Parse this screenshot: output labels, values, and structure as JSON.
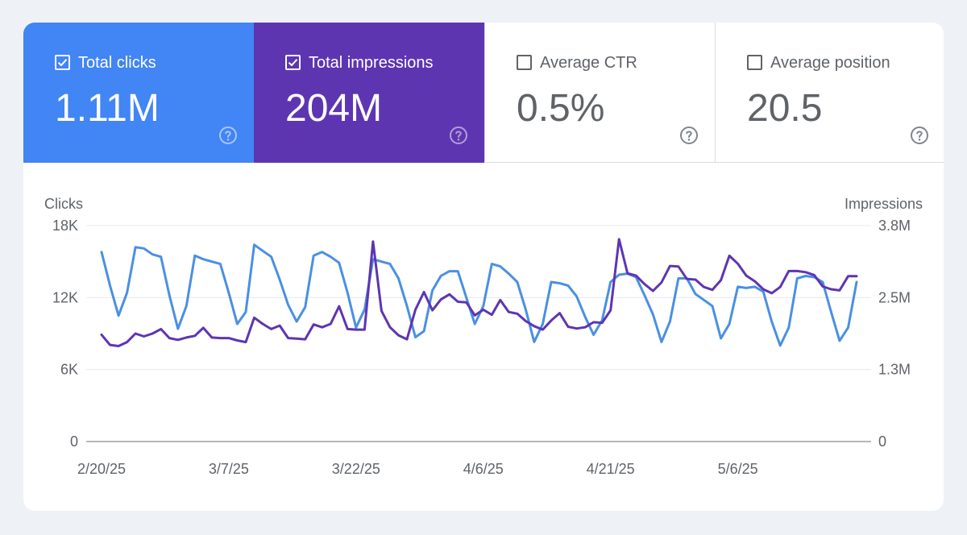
{
  "metrics": [
    {
      "label": "Total clicks",
      "value": "1.11M",
      "checked": true,
      "color": "#4285f4",
      "icon": "help-icon"
    },
    {
      "label": "Total impressions",
      "value": "204M",
      "checked": true,
      "color": "#5e35b1",
      "icon": "help-icon"
    },
    {
      "label": "Average CTR",
      "value": "0.5%",
      "checked": false,
      "icon": "help-icon"
    },
    {
      "label": "Average position",
      "value": "20.5",
      "checked": false,
      "icon": "help-icon"
    }
  ],
  "chart_data": {
    "type": "line",
    "ylabel_left": "Clicks",
    "ylabel_right": "Impressions",
    "ylim_left": [
      0,
      18000
    ],
    "ylim_right": [
      0,
      3800000
    ],
    "yticks_left": [
      "0",
      "6K",
      "12K",
      "18K"
    ],
    "yticks_right": [
      "0",
      "1.3M",
      "2.5M",
      "3.8M"
    ],
    "xticks": [
      "2/20/25",
      "3/7/25",
      "3/22/25",
      "4/6/25",
      "4/21/25",
      "5/6/25"
    ],
    "grid": true,
    "x_start": "2025-02-20",
    "series": [
      {
        "name": "Total clicks",
        "axis": "left",
        "color": "#4a90e2",
        "values": [
          15800,
          13000,
          10500,
          12400,
          16200,
          16100,
          15600,
          15400,
          12200,
          9400,
          11300,
          15500,
          15200,
          15000,
          14800,
          12400,
          9800,
          10800,
          16400,
          15900,
          15400,
          13500,
          11400,
          10000,
          11200,
          15500,
          15800,
          15400,
          14900,
          12400,
          9500,
          11000,
          15200,
          15000,
          14800,
          13600,
          11300,
          8700,
          9200,
          12600,
          13800,
          14200,
          14200,
          12000,
          9800,
          11300,
          14800,
          14600,
          14000,
          13300,
          11000,
          8300,
          9800,
          13300,
          13200,
          13000,
          12100,
          10400,
          8900,
          10100,
          13300,
          13900,
          14000,
          13700,
          12200,
          10600,
          8300,
          10000,
          13600,
          13600,
          12300,
          11800,
          11300,
          8600,
          9800,
          12900,
          12800,
          12900,
          12500,
          10000,
          8000,
          9500,
          13600,
          13800,
          13700,
          13300,
          10800,
          8400,
          9500,
          13300
        ]
      },
      {
        "name": "Total impressions",
        "axis": "right",
        "color": "#5e35b1",
        "values": [
          1880000,
          1700000,
          1680000,
          1750000,
          1900000,
          1850000,
          1900000,
          1980000,
          1820000,
          1790000,
          1830000,
          1860000,
          2000000,
          1830000,
          1820000,
          1820000,
          1780000,
          1750000,
          2180000,
          2070000,
          1980000,
          2040000,
          1820000,
          1810000,
          1800000,
          2060000,
          2010000,
          2070000,
          2380000,
          1980000,
          1970000,
          1970000,
          3520000,
          2300000,
          2010000,
          1870000,
          1800000,
          2320000,
          2630000,
          2310000,
          2500000,
          2590000,
          2460000,
          2450000,
          2220000,
          2320000,
          2230000,
          2490000,
          2280000,
          2250000,
          2120000,
          2030000,
          1970000,
          2130000,
          2260000,
          2020000,
          1990000,
          2010000,
          2100000,
          2090000,
          2310000,
          3560000,
          2960000,
          2920000,
          2770000,
          2650000,
          2800000,
          3090000,
          3080000,
          2860000,
          2850000,
          2720000,
          2670000,
          2840000,
          3270000,
          3130000,
          2920000,
          2820000,
          2680000,
          2610000,
          2720000,
          3000000,
          3000000,
          2980000,
          2930000,
          2730000,
          2680000,
          2660000,
          2910000,
          2910000
        ]
      }
    ]
  }
}
